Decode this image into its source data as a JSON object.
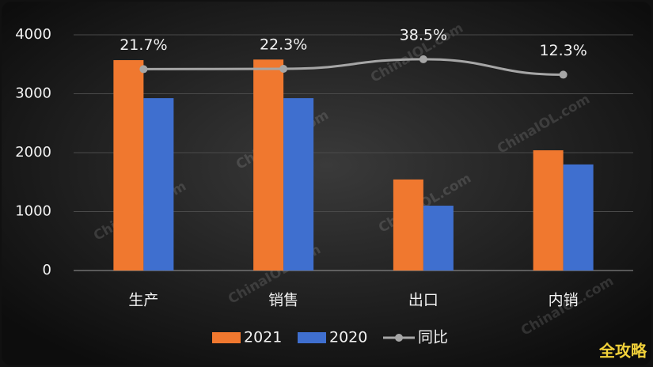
{
  "chart_data": {
    "type": "bar",
    "categories": [
      "生产",
      "销售",
      "出口",
      "内销"
    ],
    "series": [
      {
        "name": "2021",
        "color": "#f0782f",
        "values": [
          3570,
          3580,
          1545,
          2040
        ]
      },
      {
        "name": "2020",
        "color": "#3f6fcf",
        "values": [
          2925,
          2925,
          1100,
          1800
        ]
      },
      {
        "name": "同比",
        "type": "line",
        "axis": "y2",
        "color": "#a6a6a6",
        "values": [
          21.7,
          22.3,
          38.5,
          12.3
        ],
        "value_labels": [
          "21.7%",
          "22.3%",
          "38.5%",
          "12.3%"
        ]
      }
    ],
    "ylim": [
      0,
      4000
    ],
    "yticks": [
      0,
      1000,
      2000,
      3000,
      4000
    ],
    "y2lim": [
      -320,
      80
    ],
    "grid": true,
    "legend": "bottom"
  },
  "watermark": "ChinaIOL.com",
  "badge": "全攻略"
}
